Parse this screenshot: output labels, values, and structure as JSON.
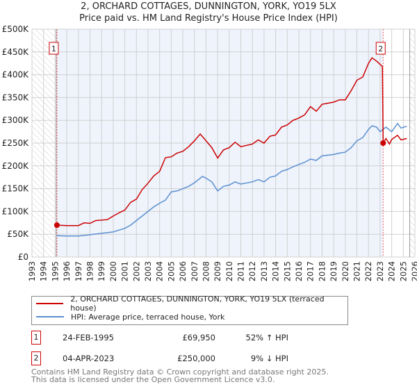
{
  "title_line1": "2, ORCHARD COTTAGES, DUNNINGTON, YORK, YO19 5LX",
  "title_line2": "Price paid vs. HM Land Registry's House Price Index (HPI)",
  "colors": {
    "property": "#cc0000",
    "hpi": "#5b8fd0",
    "shade": "#eef3fc"
  },
  "chart_data": {
    "type": "line",
    "title": "Price paid vs. HM Land Registry's House Price Index (HPI)",
    "xlim": [
      1993,
      2026
    ],
    "ylim": [
      0,
      500000
    ],
    "x_ticks": [
      "1993",
      "1994",
      "1995",
      "1996",
      "1997",
      "1998",
      "1999",
      "2000",
      "2001",
      "2002",
      "2003",
      "2004",
      "2005",
      "2006",
      "2007",
      "2008",
      "2009",
      "2010",
      "2011",
      "2012",
      "2013",
      "2014",
      "2015",
      "2016",
      "2017",
      "2018",
      "2019",
      "2020",
      "2021",
      "2022",
      "2023",
      "2024",
      "2025",
      "2026"
    ],
    "y_ticks": [
      {
        "v": 0,
        "l": "£0"
      },
      {
        "v": 50000,
        "l": "£50K"
      },
      {
        "v": 100000,
        "l": "£100K"
      },
      {
        "v": 150000,
        "l": "£150K"
      },
      {
        "v": 200000,
        "l": "£200K"
      },
      {
        "v": 250000,
        "l": "£250K"
      },
      {
        "v": 300000,
        "l": "£300K"
      },
      {
        "v": 350000,
        "l": "£350K"
      },
      {
        "v": 400000,
        "l": "£400K"
      },
      {
        "v": 450000,
        "l": "£450K"
      },
      {
        "v": 500000,
        "l": "£500K"
      }
    ],
    "grid": true,
    "series": [
      {
        "name": "2, ORCHARD COTTAGES, DUNNINGTON, YORK, YO19 5LX (terraced house)",
        "color": "#cc0000",
        "x": [
          1995.15,
          1996,
          1997,
          1997.5,
          1998,
          1998.5,
          1999.5,
          2000,
          2000.5,
          2001,
          2001.5,
          2002,
          2002.5,
          2003,
          2003.5,
          2004,
          2004.5,
          2005,
          2005.5,
          2006,
          2006.5,
          2007,
          2007.5,
          2008,
          2008.5,
          2009,
          2009.5,
          2010,
          2010.5,
          2011,
          2012,
          2012.5,
          2013,
          2013.5,
          2014,
          2014.5,
          2015,
          2015.5,
          2016,
          2016.5,
          2017,
          2017.5,
          2018,
          2019,
          2019.5,
          2020,
          2020.5,
          2021,
          2021.5,
          2022,
          2022.3,
          2022.7,
          2023.2,
          2023.26,
          2023.5,
          2023.8,
          2024,
          2024.5,
          2024.8,
          2025.3
        ],
        "y": [
          70000,
          69000,
          69000,
          75000,
          74000,
          80000,
          82000,
          90000,
          97000,
          103000,
          120000,
          127000,
          148000,
          162000,
          178000,
          188000,
          218000,
          220000,
          228000,
          232000,
          242000,
          255000,
          270000,
          255000,
          240000,
          217000,
          235000,
          240000,
          252000,
          242000,
          248000,
          257000,
          250000,
          265000,
          268000,
          285000,
          290000,
          300000,
          305000,
          312000,
          330000,
          320000,
          335000,
          340000,
          345000,
          345000,
          365000,
          388000,
          395000,
          425000,
          437000,
          430000,
          418000,
          250000,
          260000,
          248000,
          258000,
          267000,
          257000,
          260000
        ]
      },
      {
        "name": "HPI: Average price, terraced house, York",
        "color": "#5b8fd0",
        "x": [
          1995.1,
          1996,
          1997,
          1998,
          1999,
          2000,
          2001,
          2001.5,
          2002,
          2003,
          2003.5,
          2004,
          2004.5,
          2005,
          2005.5,
          2006,
          2006.5,
          2007,
          2007.7,
          2008,
          2008.5,
          2009,
          2009.5,
          2010,
          2010.5,
          2011,
          2012,
          2012.5,
          2013,
          2013.5,
          2014,
          2014.5,
          2015,
          2015.5,
          2016,
          2016.5,
          2017,
          2017.5,
          2018,
          2019,
          2019.5,
          2020,
          2020.5,
          2021,
          2021.5,
          2022,
          2022.3,
          2022.7,
          2023,
          2023.5,
          2024,
          2024.5,
          2024.8,
          2025.3
        ],
        "y": [
          47000,
          46000,
          46000,
          49000,
          52000,
          55000,
          63000,
          70000,
          80000,
          100000,
          110000,
          118000,
          125000,
          143000,
          145000,
          150000,
          155000,
          163000,
          177000,
          173000,
          165000,
          145000,
          155000,
          158000,
          165000,
          160000,
          165000,
          170000,
          165000,
          175000,
          178000,
          188000,
          192000,
          198000,
          203000,
          208000,
          215000,
          212000,
          222000,
          225000,
          228000,
          230000,
          240000,
          255000,
          262000,
          280000,
          288000,
          285000,
          275000,
          285000,
          275000,
          293000,
          283000,
          287000
        ]
      }
    ],
    "sales": [
      {
        "label": "1",
        "x": 1995.15,
        "y": 69950
      },
      {
        "label": "2",
        "x": 2023.26,
        "y": 250000
      }
    ]
  },
  "legend": {
    "property": "2, ORCHARD COTTAGES, DUNNINGTON, YORK, YO19 5LX (terraced house)",
    "hpi": "HPI: Average price, terraced house, York"
  },
  "sales_table": [
    {
      "num": "1",
      "date": "24-FEB-1995",
      "price": "£69,950",
      "hpi": "52% ↑ HPI"
    },
    {
      "num": "2",
      "date": "04-APR-2023",
      "price": "£250,000",
      "hpi": "9% ↓ HPI"
    }
  ],
  "footer": {
    "line1": "Contains HM Land Registry data © Crown copyright and database right 2025.",
    "line2": "This data is licensed under the Open Government Licence v3.0."
  }
}
